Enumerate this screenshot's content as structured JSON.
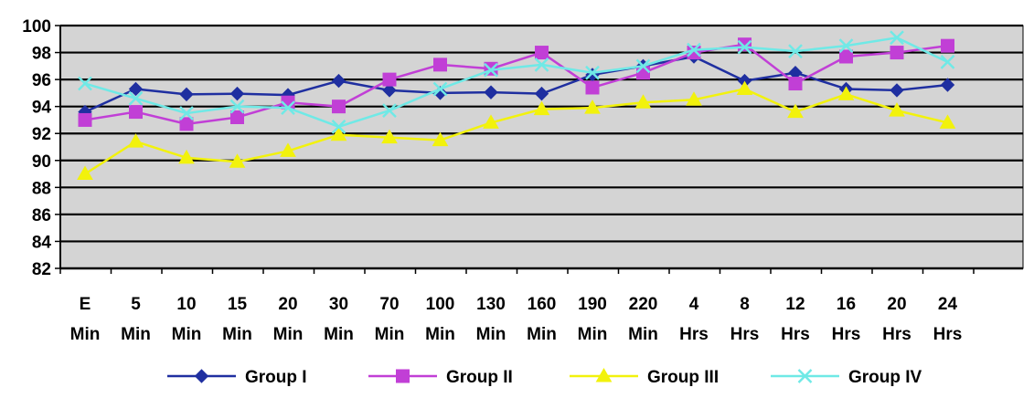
{
  "chart_data": {
    "type": "line",
    "title": "",
    "xlabel": "",
    "ylabel": "",
    "ylim": [
      82,
      100
    ],
    "ytick_step": 2,
    "grid": true,
    "legend_position": "bottom",
    "plot_background": "#d4d4d4",
    "categories": [
      [
        "E",
        "Min"
      ],
      [
        "5",
        "Min"
      ],
      [
        "10",
        "Min"
      ],
      [
        "15",
        "Min"
      ],
      [
        "20",
        "Min"
      ],
      [
        "30",
        "Min"
      ],
      [
        "70",
        "Min"
      ],
      [
        "100",
        "Min"
      ],
      [
        "130",
        "Min"
      ],
      [
        "160",
        "Min"
      ],
      [
        "190",
        "Min"
      ],
      [
        "220",
        "Min"
      ],
      [
        "4",
        "Hrs"
      ],
      [
        "8",
        "Hrs"
      ],
      [
        "12",
        "Hrs"
      ],
      [
        "16",
        "Hrs"
      ],
      [
        "20",
        "Hrs"
      ],
      [
        "24",
        "Hrs"
      ]
    ],
    "series": [
      {
        "name": "Group I",
        "color": "#1f2fa0",
        "marker": "diamond",
        "values": [
          93.6,
          95.3,
          94.9,
          94.95,
          94.85,
          95.9,
          95.2,
          95.0,
          95.05,
          94.95,
          96.35,
          97.0,
          97.7,
          95.9,
          96.5,
          95.3,
          95.2,
          95.6
        ]
      },
      {
        "name": "Group II",
        "color": "#c13fd6",
        "marker": "square",
        "values": [
          93.0,
          93.6,
          92.7,
          93.2,
          94.3,
          94.0,
          96.0,
          97.1,
          96.8,
          98.0,
          95.4,
          96.5,
          98.0,
          98.6,
          95.7,
          97.7,
          98.0,
          98.5
        ]
      },
      {
        "name": "Group III",
        "color": "#f2f20c",
        "marker": "triangle",
        "values": [
          89.0,
          91.4,
          90.2,
          89.9,
          90.7,
          91.9,
          91.7,
          91.5,
          92.8,
          93.8,
          93.9,
          94.3,
          94.5,
          95.3,
          93.6,
          94.9,
          93.7,
          92.8
        ]
      },
      {
        "name": "Group IV",
        "color": "#6fe9e6",
        "marker": "x",
        "values": [
          95.7,
          94.6,
          93.5,
          94.0,
          93.9,
          92.5,
          93.7,
          95.3,
          96.7,
          97.1,
          96.5,
          97.0,
          98.2,
          98.4,
          98.1,
          98.5,
          99.1,
          97.3
        ]
      }
    ]
  }
}
